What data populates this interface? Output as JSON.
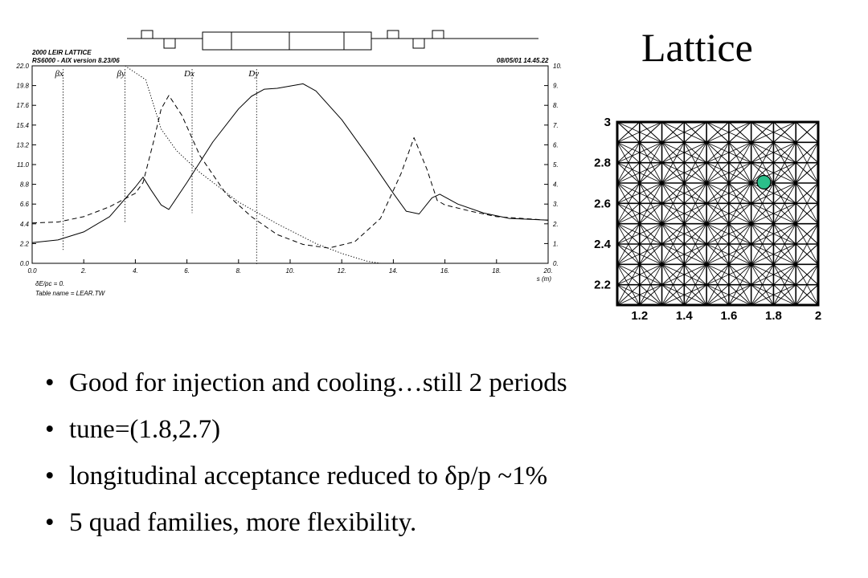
{
  "slide": {
    "title": "Lattice",
    "bullets": [
      "Good for injection and cooling…still 2 periods",
      "tune=(1.8,2.7)",
      "longitudinal acceptance reduced to δp/p ~1%",
      "5 quad families, more flexibility."
    ]
  },
  "chart_data": [
    {
      "type": "line",
      "header": [
        "2000 LEIR LATTICE",
        "RS6000 - AIX version 8.23/06"
      ],
      "timestamp": "08/05/01 14.45.22",
      "xlabel": "s (m)",
      "xlim": [
        0,
        20
      ],
      "ylim_left": [
        0,
        22
      ],
      "ylim_right": [
        0,
        10
      ],
      "x_ticks": [
        "0.0",
        "2.",
        "4.",
        "6.",
        "8.",
        "10.",
        "12.",
        "14.",
        "16.",
        "18.",
        "20."
      ],
      "y_ticks_left": [
        "0.0",
        "2.2",
        "4.4",
        "6.6",
        "8.8",
        "11.0",
        "13.2",
        "15.4",
        "17.6",
        "19.8",
        "22.0"
      ],
      "y_ticks_right": [
        "0.",
        "1.",
        "2.",
        "3.",
        "4.",
        "5.",
        "6.",
        "7.",
        "8.",
        "9.",
        "10."
      ],
      "legend": [
        "βx",
        "βy",
        "Dx",
        "Dy"
      ],
      "legend_x": [
        1.2,
        3.6,
        6.2,
        8.7
      ],
      "footer": [
        "δE/pc = 0.",
        "Table name = LEAR.TW"
      ],
      "series": [
        {
          "name": "βx",
          "style": "solid",
          "x": [
            0,
            1,
            2,
            3,
            4,
            4.3,
            4.6,
            5,
            5.3,
            6,
            7,
            8,
            8.5,
            9,
            9.5,
            10.5,
            11,
            12,
            13,
            14,
            14.5,
            15,
            15.5,
            15.8,
            16.5,
            17.5,
            18.5,
            20
          ],
          "y": [
            2.3,
            2.6,
            3.5,
            5.2,
            8.5,
            9.6,
            8.2,
            6.5,
            6.0,
            9.0,
            13.5,
            17.2,
            18.6,
            19.4,
            19.5,
            20.0,
            19.2,
            16.0,
            12.0,
            7.8,
            5.8,
            5.5,
            7.3,
            7.7,
            6.6,
            5.6,
            5.0,
            4.8
          ]
        },
        {
          "name": "βy",
          "style": "dashed",
          "x": [
            0,
            1,
            2,
            3,
            4,
            4.3,
            4.7,
            5,
            5.3,
            5.8,
            6.5,
            7.5,
            8.5,
            9.5,
            10.5,
            11.5,
            12.5,
            13.5,
            14.3,
            14.8,
            15.3,
            15.7,
            16,
            17,
            18,
            20
          ],
          "y": [
            4.5,
            4.6,
            5.2,
            6.3,
            7.8,
            9.0,
            13.5,
            17.2,
            18.7,
            16.5,
            12.0,
            7.8,
            5.2,
            3.2,
            2.1,
            1.7,
            2.4,
            5.0,
            10.0,
            14.0,
            10.5,
            7.0,
            6.5,
            5.8,
            5.2,
            4.8
          ]
        },
        {
          "name": "Dx",
          "style": "dotted",
          "axis": "right",
          "x": [
            0,
            3.6,
            4.4,
            5,
            5.6,
            6.5,
            8,
            9.5,
            11,
            12,
            13,
            13.5
          ],
          "y": [
            10.0,
            10.0,
            9.3,
            6.8,
            5.7,
            4.6,
            3.1,
            2.0,
            1.0,
            0.5,
            0.1,
            0.0
          ]
        }
      ]
    },
    {
      "type": "scatter",
      "title": "",
      "xlim": [
        1.1,
        2.0
      ],
      "ylim": [
        2.1,
        3.0
      ],
      "x_ticks": [
        "1.2",
        "1.4",
        "1.6",
        "1.8",
        "2"
      ],
      "y_ticks": [
        "2.2",
        "2.4",
        "2.6",
        "2.8",
        "3"
      ],
      "working_point": {
        "x": 1.8,
        "y": 2.7,
        "color": "#2bbf8a"
      }
    }
  ]
}
